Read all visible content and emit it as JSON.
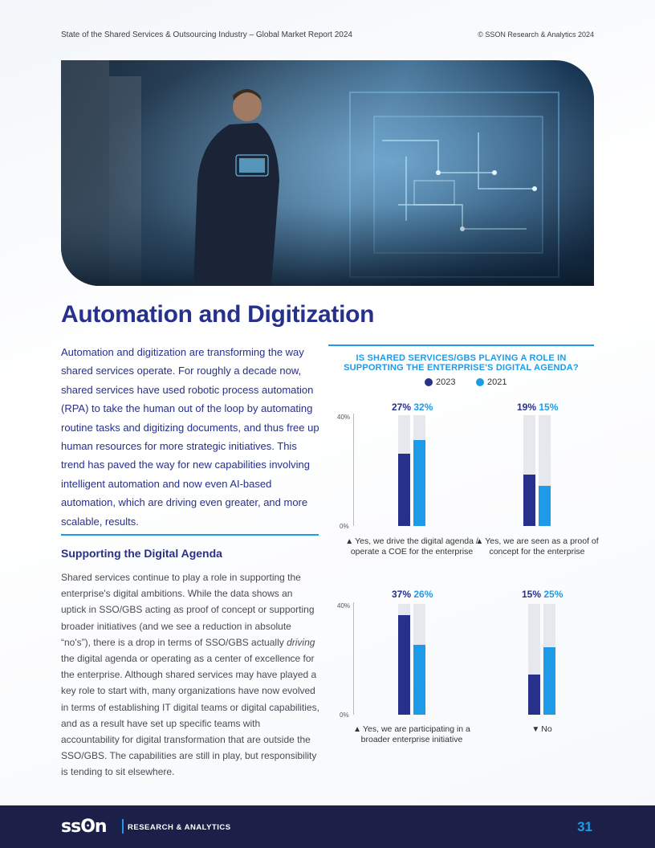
{
  "header": {
    "left": "State of the Shared Services & Outsourcing Industry – Global Market Report 2024",
    "right": "© SSON Research & Analytics 2024"
  },
  "title": "Automation and Digitization",
  "intro": "Automation and digitization are transforming the way shared services operate. For roughly a decade now, shared services have used robotic process automation (RPA) to take the human out of the loop by automating routine tasks and digitizing documents, and thus free up human resources for more strategic initiatives. This trend has paved the way for new capabilities involving intelligent automation and now even AI-based automation, which are driving even greater, and more scalable, results.",
  "section": {
    "heading": "Supporting the Digital Agenda",
    "body_before": "Shared services continue to play a role in supporting the enterprise's digital ambitions. While the data shows an uptick in SSO/GBS acting as proof of concept or supporting broader initiatives (and we see a reduction in absolute “no's”), there is a drop in terms of SSO/GBS actually ",
    "body_em": "driving",
    "body_after": " the digital agenda or operating as a center of excellence for the enterprise. Although shared services may have played a key role to start with, many organizations have now evolved in terms of establishing IT digital teams or digital capabilities, and as a result have set up specific teams with accountability for digital transformation that are outside the SSO/GBS. The capabilities are still in play, but responsibility is tending to sit elsewhere."
  },
  "chart_data": {
    "type": "bar",
    "title": "IS SHARED SERVICES/GBS PLAYING A ROLE IN SUPPORTING THE ENTERPRISE'S DIGITAL AGENDA?",
    "legend": [
      "2023",
      "2021"
    ],
    "colors": {
      "2023": "#27308a",
      "2021": "#1d9be8",
      "track": "#e6e8ed"
    },
    "ylim": [
      0,
      40
    ],
    "yticks": [
      "40%",
      "0%"
    ],
    "panels": [
      {
        "label": "Yes, we drive the digital agenda / operate a COE for the enterprise",
        "icon": "thumbs-up-icon",
        "v2023": 27,
        "v2021": 32,
        "t2023": "27%",
        "t2021": "32%"
      },
      {
        "label": "Yes, we are seen as a proof of concept for the enterprise",
        "icon": "thumbs-up-icon",
        "v2023": 19,
        "v2021": 15,
        "t2023": "19%",
        "t2021": "15%"
      },
      {
        "label": "Yes, we are participating in a broader enterprise initiative",
        "icon": "thumbs-up-icon",
        "v2023": 37,
        "v2021": 26,
        "t2023": "37%",
        "t2021": "26%"
      },
      {
        "label": "No",
        "icon": "thumbs-down-icon",
        "v2023": 15,
        "v2021": 25,
        "t2023": "15%",
        "t2021": "25%"
      }
    ]
  },
  "footer": {
    "logo": "ssʘn",
    "tagline": "RESEARCH & ANALYTICS",
    "page": "31"
  }
}
